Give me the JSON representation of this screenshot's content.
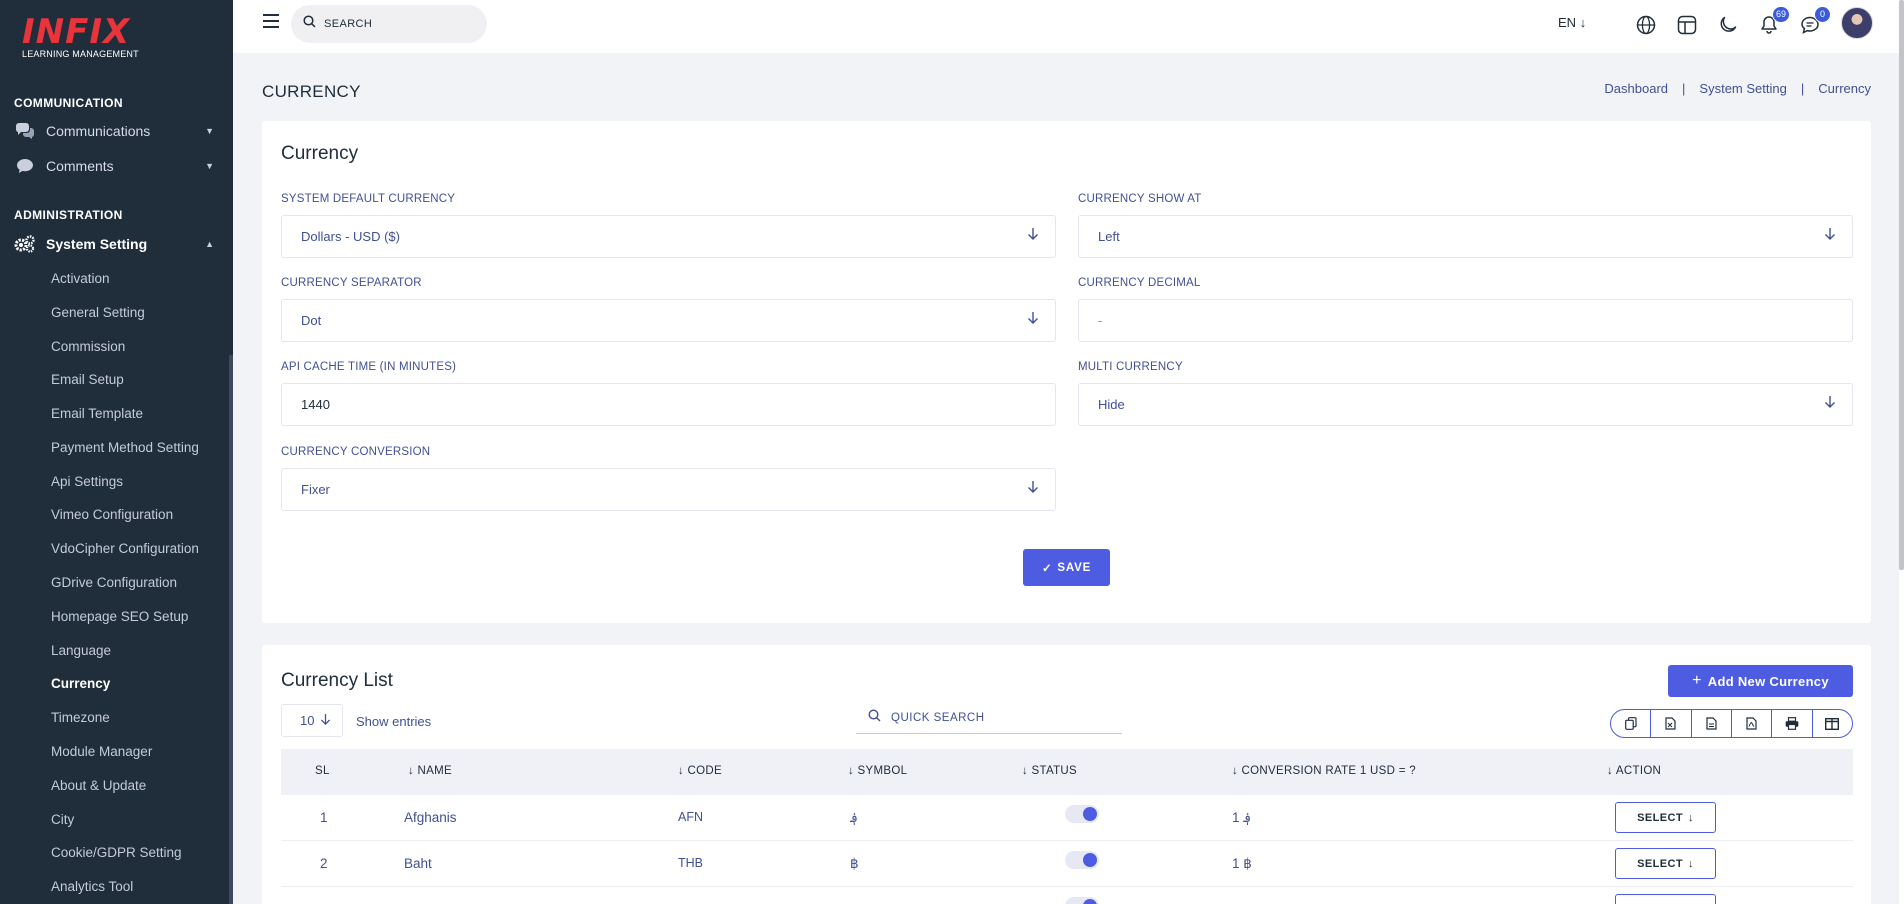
{
  "brand": {
    "logo_text": "INFIX",
    "tagline": "LEARNING MANAGEMENT"
  },
  "sidebar": {
    "section_communication": "COMMUNICATION",
    "communications": "Communications",
    "comments": "Comments",
    "section_administration": "ADMINISTRATION",
    "system_setting": "System Setting",
    "items": [
      {
        "label": "Activation"
      },
      {
        "label": "General Setting"
      },
      {
        "label": "Commission"
      },
      {
        "label": "Email Setup"
      },
      {
        "label": "Email Template"
      },
      {
        "label": "Payment Method Setting"
      },
      {
        "label": "Api Settings"
      },
      {
        "label": "Vimeo Configuration"
      },
      {
        "label": "VdoCipher Configuration"
      },
      {
        "label": "GDrive Configuration"
      },
      {
        "label": "Homepage SEO Setup"
      },
      {
        "label": "Language"
      },
      {
        "label": "Currency"
      },
      {
        "label": "Timezone"
      },
      {
        "label": "Module Manager"
      },
      {
        "label": "About & Update"
      },
      {
        "label": "City"
      },
      {
        "label": "Cookie/GDPR Setting"
      },
      {
        "label": "Analytics Tool"
      }
    ],
    "active_item": "Currency"
  },
  "header": {
    "search_placeholder": "SEARCH",
    "language": "EN",
    "notifications_count": "69",
    "messages_count": "0"
  },
  "page": {
    "title": "CURRENCY",
    "breadcrumb": [
      "Dashboard",
      "System Setting",
      "Currency"
    ]
  },
  "form": {
    "title": "Currency",
    "system_default_currency_label": "SYSTEM DEFAULT CURRENCY",
    "system_default_currency_value": "Dollars - USD ($)",
    "currency_show_at_label": "CURRENCY SHOW AT",
    "currency_show_at_value": "Left",
    "currency_separator_label": "CURRENCY SEPARATOR",
    "currency_separator_value": "Dot",
    "currency_decimal_label": "CURRENCY DECIMAL",
    "currency_decimal_placeholder": "-",
    "api_cache_label": "API CACHE TIME (IN MINUTES)",
    "api_cache_value": "1440",
    "multi_currency_label": "MULTI CURRENCY",
    "multi_currency_value": "Hide",
    "currency_conversion_label": "CURRENCY CONVERSION",
    "currency_conversion_value": "Fixer",
    "save_label": "SAVE"
  },
  "list": {
    "title": "Currency List",
    "add_label": "Add New Currency",
    "per_page": "10",
    "show_entries": "Show entries",
    "quick_search_placeholder": "QUICK SEARCH",
    "columns": {
      "sl": "SL",
      "name": "NAME",
      "code": "CODE",
      "symbol": "SYMBOL",
      "status": "STATUS",
      "rate": "CONVERSION RATE 1 USD = ?",
      "action": "ACTION"
    },
    "rows": [
      {
        "sl": "1",
        "name": "Afghanis",
        "code": "AFN",
        "symbol": "؋",
        "status": true,
        "rate": "1 ؋",
        "action": "SELECT"
      },
      {
        "sl": "2",
        "name": "Baht",
        "code": "THB",
        "symbol": "฿",
        "status": true,
        "rate": "1 ฿",
        "action": "SELECT"
      }
    ]
  },
  "colors": {
    "accent": "#4d5ce0",
    "sidebar_bg": "#202e3b",
    "text": "#415094",
    "logo_red": "#e8343a"
  }
}
